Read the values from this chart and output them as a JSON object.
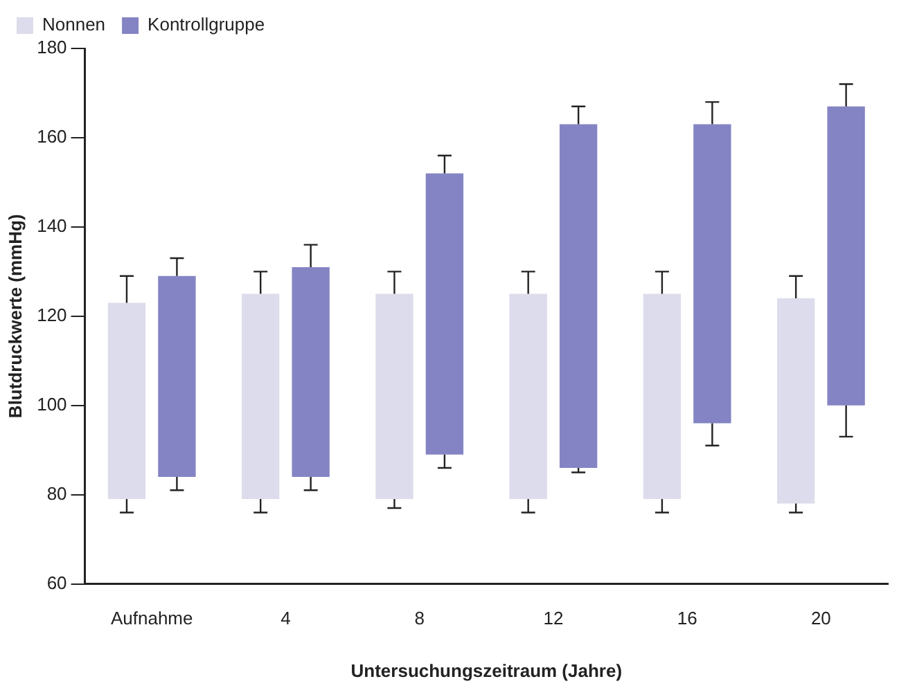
{
  "chart_data": {
    "type": "bar",
    "xlabel": "Untersuchungszeitraum (Jahre)",
    "ylabel": "Blutdruckwerte (mmHg)",
    "categories": [
      "Aufnahme",
      "4",
      "8",
      "12",
      "16",
      "20"
    ],
    "series": [
      {
        "name": "Nonnen",
        "color": "#dcdcec",
        "base": [
          79,
          79,
          79,
          79,
          79,
          78
        ],
        "values": [
          44,
          46,
          46,
          46,
          46,
          46
        ],
        "errors": [
          [
            76,
            129
          ],
          [
            76,
            130
          ],
          [
            77,
            130
          ],
          [
            76,
            130
          ],
          [
            76,
            130
          ],
          [
            76,
            129
          ]
        ]
      },
      {
        "name": "Kontrollgruppe",
        "color": "#8484c4",
        "base": [
          84,
          84,
          89,
          86,
          96,
          100
        ],
        "values": [
          45,
          47,
          63,
          77,
          67,
          67
        ],
        "errors": [
          [
            81,
            133
          ],
          [
            81,
            136
          ],
          [
            86,
            156
          ],
          [
            85,
            167
          ],
          [
            91,
            168
          ],
          [
            93,
            172
          ]
        ]
      }
    ],
    "ylim": [
      60,
      180
    ],
    "yticks": [
      60,
      80,
      100,
      120,
      140,
      160,
      180
    ],
    "grid": false,
    "legend": "top left"
  }
}
